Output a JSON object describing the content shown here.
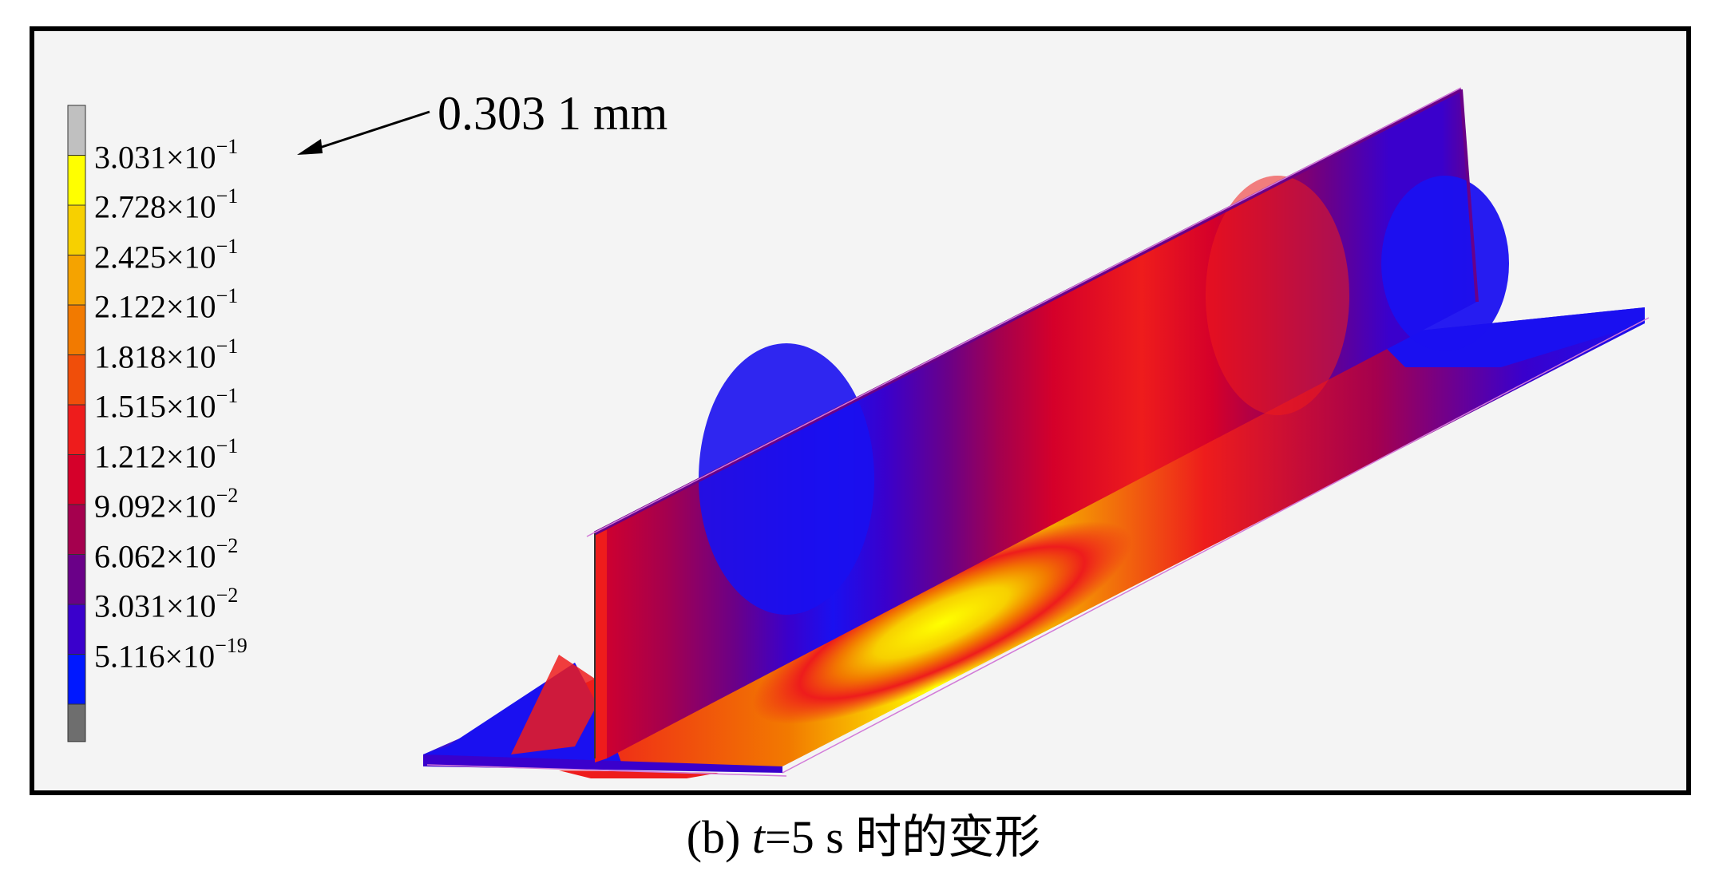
{
  "annotation": "0.303 1 mm",
  "caption": {
    "prefix": "(b) ",
    "variable": "t",
    "rest": "=5 s 时的变形"
  },
  "legend": {
    "entries": [
      {
        "mantissa": "3.031",
        "exponent": "−1",
        "color": "#ffff00"
      },
      {
        "mantissa": "2.728",
        "exponent": "−1",
        "color": "#f7d000"
      },
      {
        "mantissa": "2.425",
        "exponent": "−1",
        "color": "#f5a300"
      },
      {
        "mantissa": "2.122",
        "exponent": "−1",
        "color": "#f27a00"
      },
      {
        "mantissa": "1.818",
        "exponent": "−1",
        "color": "#f04e0a"
      },
      {
        "mantissa": "1.515",
        "exponent": "−1",
        "color": "#ee1c1c"
      },
      {
        "mantissa": "1.212",
        "exponent": "−1",
        "color": "#d5002a"
      },
      {
        "mantissa": "9.092",
        "exponent": "−2",
        "color": "#a5004e"
      },
      {
        "mantissa": "6.062",
        "exponent": "−2",
        "color": "#6a0088"
      },
      {
        "mantissa": "3.031",
        "exponent": "−2",
        "color": "#3a00cc"
      },
      {
        "mantissa": "5.116",
        "exponent": "−19",
        "color": "#0018ff"
      }
    ],
    "top_color": "#c0c0c0",
    "bottom_color": "#6e6e6e"
  }
}
